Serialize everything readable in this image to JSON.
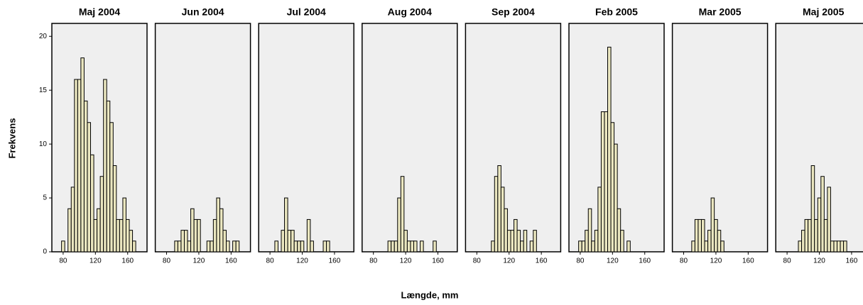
{
  "ylabel": "Frekvens",
  "xlabel": "Længde, mm",
  "chart_data": [
    {
      "type": "histogram",
      "title": "Maj 2004",
      "bins": [
        70,
        74,
        78,
        82,
        86,
        90,
        94,
        98,
        102,
        106,
        110,
        114,
        118,
        122,
        126,
        130,
        134,
        138,
        142,
        146,
        150,
        154,
        158,
        162,
        166,
        170,
        174,
        178,
        182
      ],
      "values": [
        0,
        0,
        1,
        0,
        4,
        6,
        16,
        16,
        18,
        14,
        12,
        9,
        3,
        4,
        7,
        16,
        14,
        12,
        8,
        3,
        3,
        5,
        3,
        2,
        1,
        0,
        0,
        0
      ],
      "xlim": [
        66,
        184
      ],
      "xticks": [
        80,
        120,
        160
      ],
      "ylim": [
        0,
        21.2
      ],
      "yticks": [
        0,
        5,
        10,
        15,
        20
      ],
      "color": "#ebe7c0"
    },
    {
      "type": "histogram",
      "title": "Jun 2004",
      "bins": [
        70,
        74,
        78,
        82,
        86,
        90,
        94,
        98,
        102,
        106,
        110,
        114,
        118,
        122,
        126,
        130,
        134,
        138,
        142,
        146,
        150,
        154,
        158,
        162,
        166,
        170,
        174,
        178,
        182
      ],
      "values": [
        0,
        0,
        0,
        0,
        0,
        1,
        1,
        2,
        2,
        1,
        4,
        3,
        3,
        0,
        0,
        1,
        1,
        3,
        5,
        4,
        2,
        1,
        0,
        1,
        1,
        0,
        0,
        0
      ],
      "xlim": [
        66,
        184
      ],
      "xticks": [
        80,
        120,
        160
      ],
      "ylim": [
        0,
        21.2
      ],
      "color": "#ebe7c0"
    },
    {
      "type": "histogram",
      "title": "Jul 2004",
      "bins": [
        70,
        74,
        78,
        82,
        86,
        90,
        94,
        98,
        102,
        106,
        110,
        114,
        118,
        122,
        126,
        130,
        134,
        138,
        142,
        146,
        150,
        154,
        158,
        162,
        166,
        170,
        174,
        178,
        182
      ],
      "values": [
        0,
        0,
        0,
        0,
        1,
        0,
        2,
        5,
        2,
        2,
        1,
        1,
        1,
        0,
        3,
        1,
        0,
        0,
        0,
        1,
        1,
        0,
        0,
        0,
        0,
        0,
        0,
        0
      ],
      "xlim": [
        66,
        184
      ],
      "xticks": [
        80,
        120,
        160
      ],
      "ylim": [
        0,
        21.2
      ],
      "color": "#ebe7c0"
    },
    {
      "type": "histogram",
      "title": "Aug 2004",
      "bins": [
        70,
        74,
        78,
        82,
        86,
        90,
        94,
        98,
        102,
        106,
        110,
        114,
        118,
        122,
        126,
        130,
        134,
        138,
        142,
        146,
        150,
        154,
        158,
        162,
        166,
        170,
        174,
        178,
        182
      ],
      "values": [
        0,
        0,
        0,
        0,
        0,
        0,
        0,
        1,
        1,
        1,
        5,
        7,
        2,
        1,
        1,
        1,
        0,
        1,
        0,
        0,
        0,
        1,
        0,
        0,
        0,
        0,
        0,
        0
      ],
      "xlim": [
        66,
        184
      ],
      "xticks": [
        80,
        120,
        160
      ],
      "ylim": [
        0,
        21.2
      ],
      "color": "#ebe7c0"
    },
    {
      "type": "histogram",
      "title": "Sep 2004",
      "bins": [
        70,
        74,
        78,
        82,
        86,
        90,
        94,
        98,
        102,
        106,
        110,
        114,
        118,
        122,
        126,
        130,
        134,
        138,
        142,
        146,
        150,
        154,
        158,
        162,
        166,
        170,
        174,
        178,
        182
      ],
      "values": [
        0,
        0,
        0,
        0,
        0,
        0,
        0,
        1,
        7,
        8,
        6,
        4,
        2,
        2,
        3,
        2,
        1,
        2,
        0,
        1,
        2,
        0,
        0,
        0,
        0,
        0,
        0,
        0
      ],
      "xlim": [
        66,
        184
      ],
      "xticks": [
        80,
        120,
        160
      ],
      "ylim": [
        0,
        21.2
      ],
      "color": "#ebe7c0"
    },
    {
      "type": "histogram",
      "title": "Feb 2005",
      "bins": [
        70,
        74,
        78,
        82,
        86,
        90,
        94,
        98,
        102,
        106,
        110,
        114,
        118,
        122,
        126,
        130,
        134,
        138,
        142,
        146,
        150,
        154,
        158,
        162,
        166,
        170,
        174,
        178,
        182
      ],
      "values": [
        0,
        0,
        1,
        1,
        2,
        4,
        1,
        2,
        6,
        13,
        13,
        19,
        12,
        10,
        4,
        2,
        0,
        1,
        0,
        0,
        0,
        0,
        0,
        0,
        0,
        0,
        0,
        0
      ],
      "xlim": [
        66,
        184
      ],
      "xticks": [
        80,
        120,
        160
      ],
      "ylim": [
        0,
        21.2
      ],
      "color": "#ebe7c0"
    },
    {
      "type": "histogram",
      "title": "Mar 2005",
      "bins": [
        70,
        74,
        78,
        82,
        86,
        90,
        94,
        98,
        102,
        106,
        110,
        114,
        118,
        122,
        126,
        130,
        134,
        138,
        142,
        146,
        150,
        154,
        158,
        162,
        166,
        170,
        174,
        178,
        182
      ],
      "values": [
        0,
        0,
        0,
        0,
        0,
        1,
        3,
        3,
        3,
        1,
        2,
        5,
        3,
        2,
        1,
        0,
        0,
        0,
        0,
        0,
        0,
        0,
        0,
        0,
        0,
        0,
        0,
        0
      ],
      "xlim": [
        66,
        184
      ],
      "xticks": [
        80,
        120,
        160
      ],
      "ylim": [
        0,
        21.2
      ],
      "color": "#ebe7c0"
    },
    {
      "type": "histogram",
      "title": "Maj 2005",
      "bins": [
        70,
        74,
        78,
        82,
        86,
        90,
        94,
        98,
        102,
        106,
        110,
        114,
        118,
        122,
        126,
        130,
        134,
        138,
        142,
        146,
        150,
        154,
        158,
        162,
        166,
        170,
        174,
        178,
        182
      ],
      "values": [
        0,
        0,
        0,
        0,
        0,
        0,
        1,
        2,
        3,
        3,
        8,
        3,
        5,
        7,
        3,
        6,
        1,
        1,
        1,
        1,
        1,
        0,
        0,
        0,
        0,
        0,
        0,
        0
      ],
      "xlim": [
        66,
        184
      ],
      "xticks": [
        80,
        120,
        160
      ],
      "ylim": [
        0,
        21.2
      ],
      "color": "#ebe7c0"
    }
  ]
}
